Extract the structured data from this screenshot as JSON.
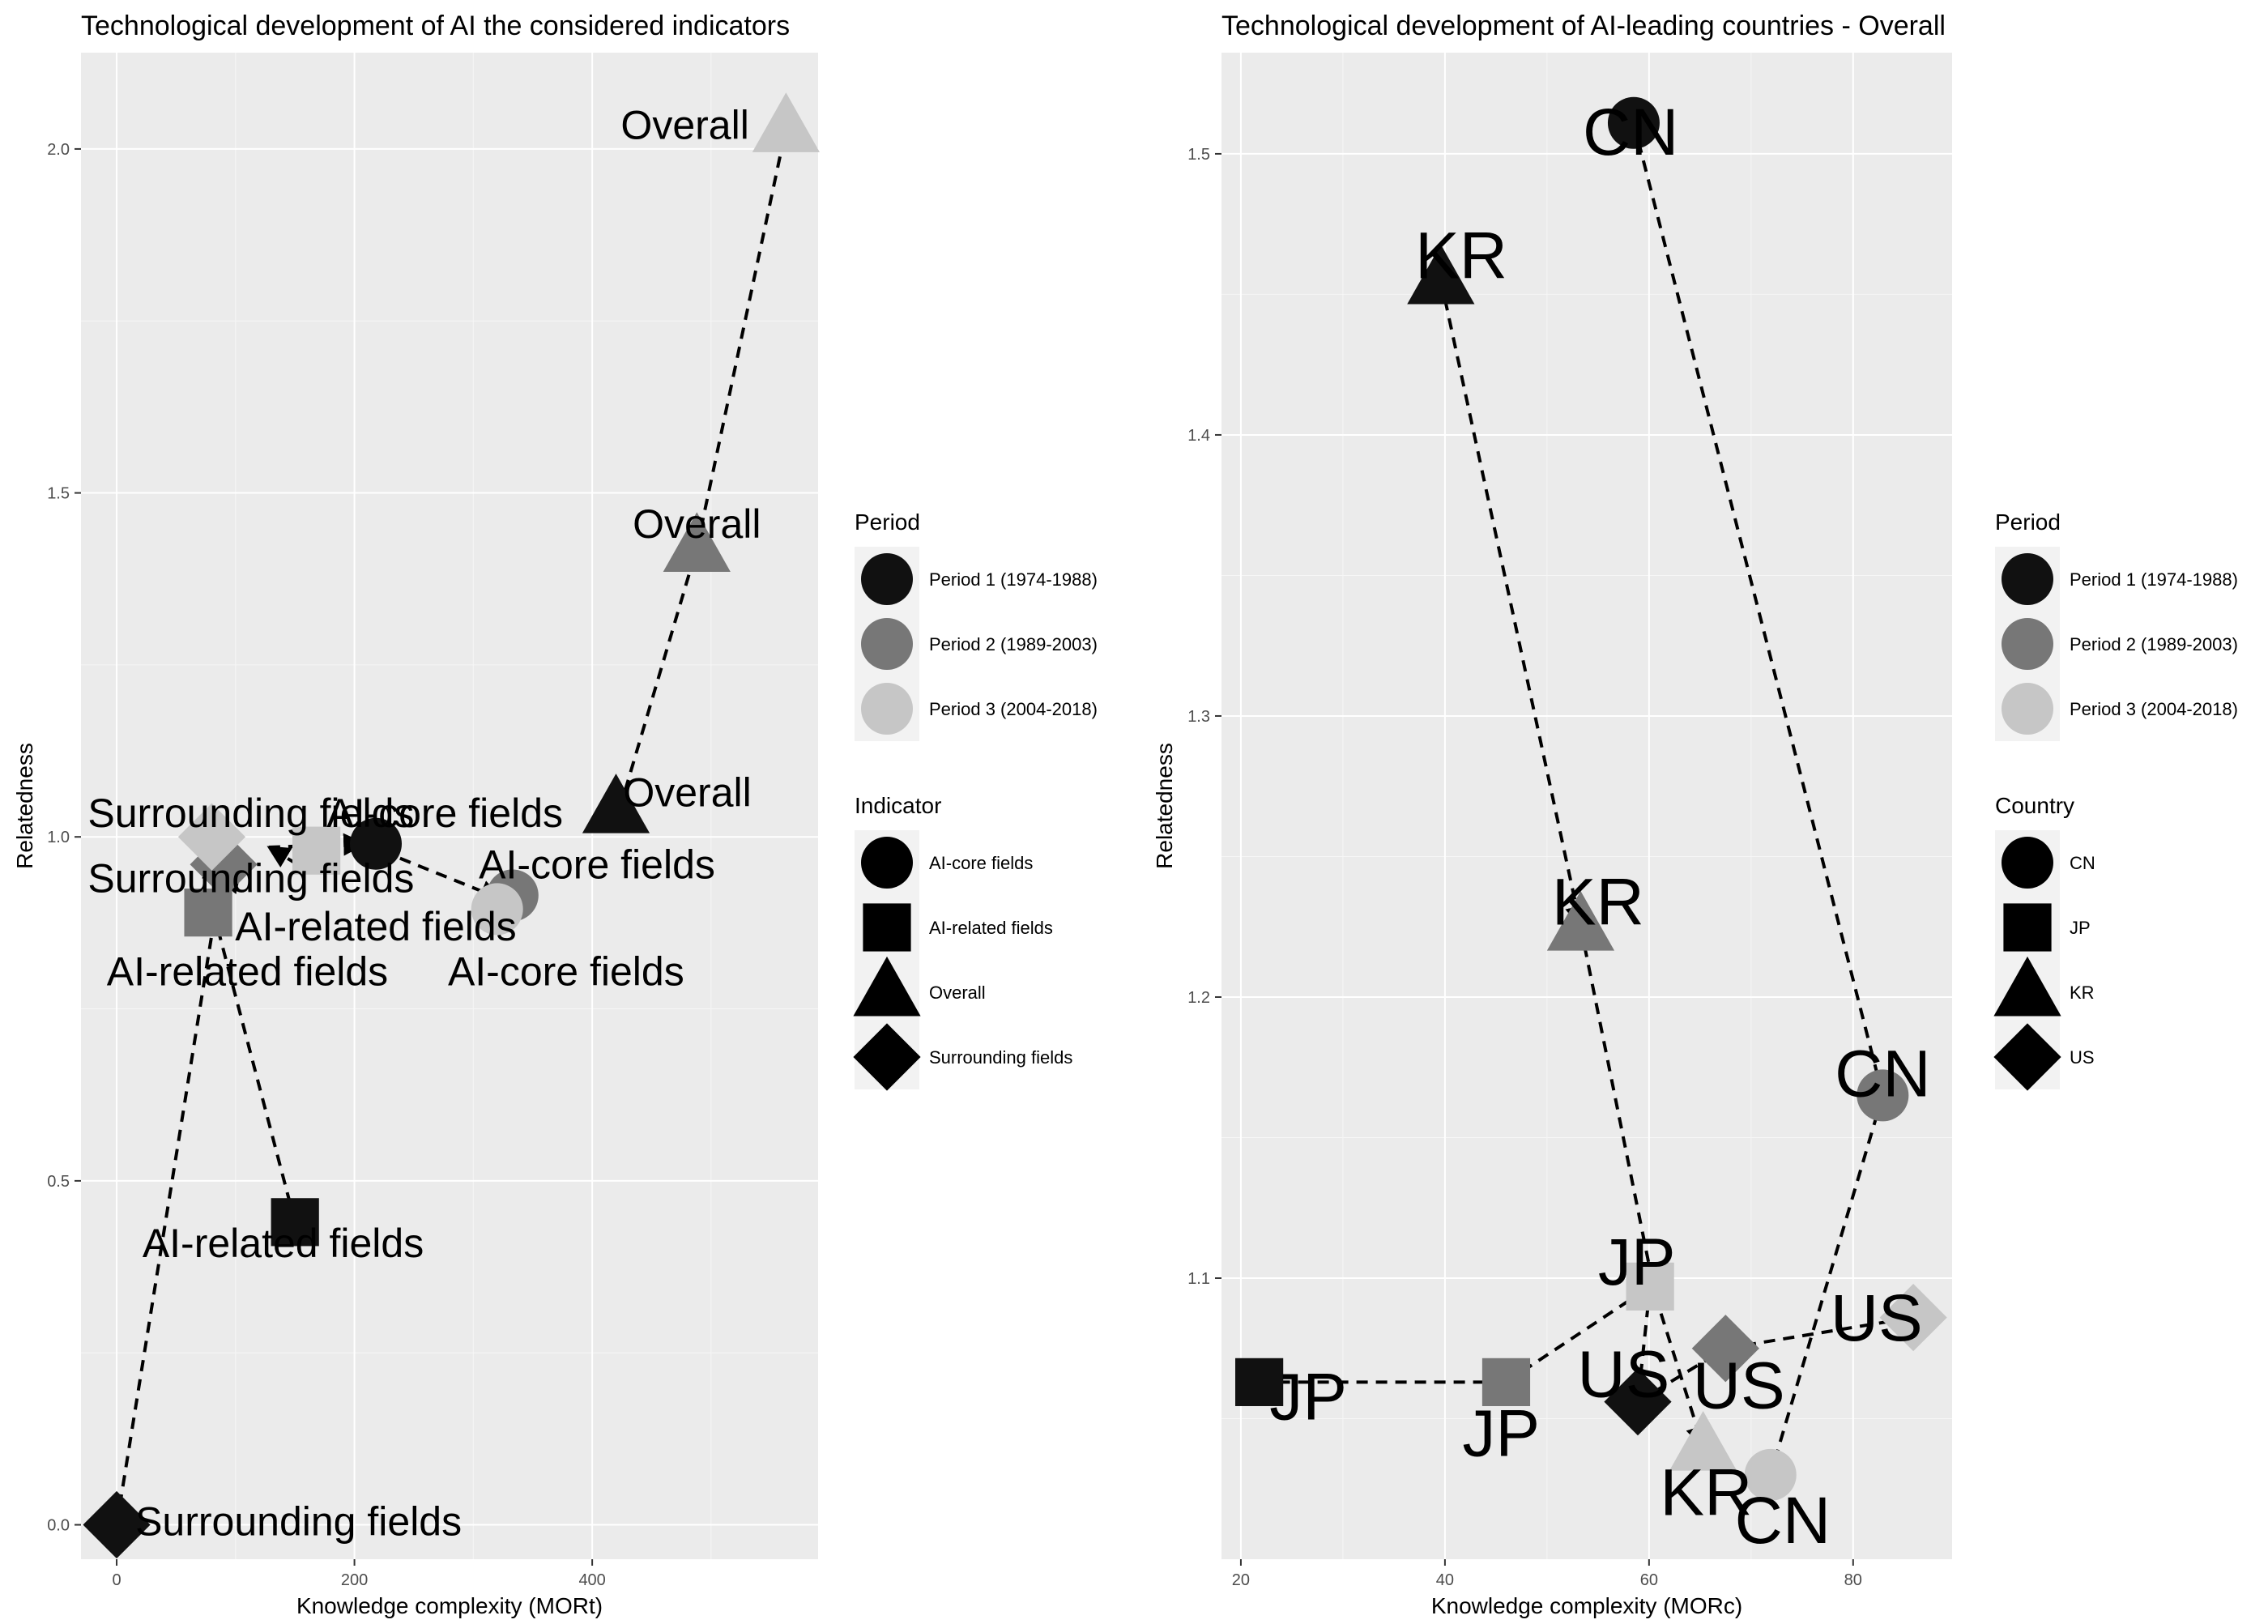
{
  "chart_data": [
    {
      "type": "scatter",
      "title": "Technological development of AI the considered indicators",
      "xlabel": "Knowledge complexity (MORt)",
      "ylabel": "Relatedness",
      "xlim": [
        -30,
        590
      ],
      "ylim": [
        -0.05,
        2.14
      ],
      "x_ticks": [
        0,
        200,
        400
      ],
      "y_ticks": [
        0.0,
        0.5,
        1.0,
        1.5,
        2.0
      ],
      "y_tick_labels": [
        "0.0",
        "0.5",
        "1.0",
        "1.5",
        "2.0"
      ],
      "grid": true,
      "period_colors": {
        "Period 1 (1974-1988)": "#111111",
        "Period 2 (1989-2003)": "#777777",
        "Period 3 (2004-2018)": "#c6c6c6"
      },
      "series": [
        {
          "indicator": "Surrounding fields",
          "shape": "diamond",
          "points": [
            {
              "period": "Period 1 (1974-1988)",
              "x": 0,
              "y": 0.0
            },
            {
              "period": "Period 2 (1989-2003)",
              "x": 90,
              "y": 0.96
            },
            {
              "period": "Period 3 (2004-2018)",
              "x": 80,
              "y": 1.0
            }
          ]
        },
        {
          "indicator": "AI-related fields",
          "shape": "square",
          "points": [
            {
              "period": "Period 1 (1974-1988)",
              "x": 150,
              "y": 0.44
            },
            {
              "period": "Period 2 (1989-2003)",
              "x": 77,
              "y": 0.89
            },
            {
              "period": "Period 3 (2004-2018)",
              "x": 168,
              "y": 0.98
            }
          ]
        },
        {
          "indicator": "AI-core fields",
          "shape": "circle",
          "points": [
            {
              "period": "Period 1 (1974-1988)",
              "x": 218,
              "y": 0.99
            },
            {
              "period": "Period 2 (1989-2003)",
              "x": 333,
              "y": 0.915
            },
            {
              "period": "Period 3 (2004-2018)",
              "x": 320,
              "y": 0.895
            }
          ]
        },
        {
          "indicator": "Overall",
          "shape": "triangle",
          "points": [
            {
              "period": "Period 1 (1974-1988)",
              "x": 420,
              "y": 1.04
            },
            {
              "period": "Period 2 (1989-2003)",
              "x": 488,
              "y": 1.42
            },
            {
              "period": "Period 3 (2004-2018)",
              "x": 563,
              "y": 2.03
            }
          ]
        }
      ],
      "labels": [
        {
          "text": "Surrounding fields",
          "x": 153,
          "y": 0.0
        },
        {
          "text": "Surrounding fields",
          "x": 113,
          "y": 1.03
        },
        {
          "text": "Surrounding fields",
          "x": 113,
          "y": 0.935
        },
        {
          "text": "AI-related fields",
          "x": 140,
          "y": 0.405
        },
        {
          "text": "AI-related fields",
          "x": 110,
          "y": 0.8
        },
        {
          "text": "AI-related fields",
          "x": 218,
          "y": 0.865
        },
        {
          "text": "AI-core fields",
          "x": 276,
          "y": 1.03
        },
        {
          "text": "AI-core fields",
          "x": 404,
          "y": 0.955
        },
        {
          "text": "AI-core fields",
          "x": 378,
          "y": 0.8
        },
        {
          "text": "Overall",
          "x": 480,
          "y": 1.06
        },
        {
          "text": "Overall",
          "x": 488,
          "y": 1.45
        },
        {
          "text": "Overall",
          "x": 478,
          "y": 2.03
        }
      ],
      "arrows": [
        {
          "from": [
            0,
            0.0
          ],
          "to": [
            83,
            0.89
          ]
        },
        {
          "from": [
            83,
            0.89
          ],
          "to": [
            80,
            0.97
          ]
        },
        {
          "from": [
            150,
            0.44
          ],
          "to": [
            80,
            0.9
          ]
        },
        {
          "from": [
            80,
            0.9
          ],
          "to": [
            104,
            0.95
          ]
        },
        {
          "from": [
            218,
            0.99
          ],
          "to": [
            152,
            0.96
          ]
        },
        {
          "from": [
            152,
            0.96
          ],
          "to": [
            128,
            0.985
          ]
        },
        {
          "from": [
            128,
            0.985
          ],
          "to": [
            208,
            0.99
          ]
        },
        {
          "from": [
            208,
            0.99
          ],
          "to": [
            323,
            0.91
          ]
        },
        {
          "from": [
            423,
            1.04
          ],
          "to": [
            488,
            1.42
          ]
        },
        {
          "from": [
            488,
            1.42
          ],
          "to": [
            563,
            2.03
          ]
        }
      ],
      "legend": {
        "placement": "right",
        "period_title": "Period",
        "period_entries": [
          "Period 1 (1974-1988)",
          "Period 2 (1989-2003)",
          "Period 3 (2004-2018)"
        ],
        "shape_title": "Indicator",
        "shape_entries": [
          {
            "label": "AI-core fields",
            "shape": "circle"
          },
          {
            "label": "AI-related fields",
            "shape": "square"
          },
          {
            "label": "Overall",
            "shape": "triangle"
          },
          {
            "label": "Surrounding fields",
            "shape": "diamond"
          }
        ]
      }
    },
    {
      "type": "scatter",
      "title": "Technological development of AI-leading countries - Overall",
      "xlabel": "Knowledge complexity (MORc)",
      "ylabel": "Relatedness",
      "xlim": [
        18.1,
        89.7
      ],
      "ylim": [
        1.0,
        1.536
      ],
      "x_ticks": [
        20,
        40,
        60,
        80
      ],
      "y_ticks": [
        1.1,
        1.2,
        1.3,
        1.4,
        1.5
      ],
      "y_tick_labels": [
        "1.1",
        "1.2",
        "1.3",
        "1.4",
        "1.5"
      ],
      "grid": true,
      "period_colors": {
        "Period 1 (1974-1988)": "#111111",
        "Period 2 (1989-2003)": "#777777",
        "Period 3 (2004-2018)": "#c6c6c6"
      },
      "series": [
        {
          "country": "CN",
          "shape": "circle",
          "points": [
            {
              "period": "Period 1 (1974-1988)",
              "x": 58.5,
              "y": 1.511
            },
            {
              "period": "Period 2 (1989-2003)",
              "x": 82.9,
              "y": 1.165
            },
            {
              "period": "Period 3 (2004-2018)",
              "x": 71.9,
              "y": 1.03
            }
          ]
        },
        {
          "country": "JP",
          "shape": "square",
          "points": [
            {
              "period": "Period 1 (1974-1988)",
              "x": 21.8,
              "y": 1.063
            },
            {
              "period": "Period 2 (1989-2003)",
              "x": 46.0,
              "y": 1.063
            },
            {
              "period": "Period 3 (2004-2018)",
              "x": 60.1,
              "y": 1.097
            }
          ]
        },
        {
          "country": "KR",
          "shape": "triangle",
          "points": [
            {
              "period": "Period 1 (1974-1988)",
              "x": 39.6,
              "y": 1.455
            },
            {
              "period": "Period 2 (1989-2003)",
              "x": 53.3,
              "y": 1.225
            },
            {
              "period": "Period 3 (2004-2018)",
              "x": 65.3,
              "y": 1.04
            }
          ]
        },
        {
          "country": "US",
          "shape": "diamond",
          "points": [
            {
              "period": "Period 1 (1974-1988)",
              "x": 58.9,
              "y": 1.056
            },
            {
              "period": "Period 2 (1989-2003)",
              "x": 67.5,
              "y": 1.075
            },
            {
              "period": "Period 3 (2004-2018)",
              "x": 85.9,
              "y": 1.086
            }
          ]
        }
      ],
      "labels": [
        {
          "text": "CN",
          "x": 58.2,
          "y": 1.506
        },
        {
          "text": "CN",
          "x": 82.9,
          "y": 1.171
        },
        {
          "text": "CN",
          "x": 73.1,
          "y": 1.012
        },
        {
          "text": "KR",
          "x": 41.6,
          "y": 1.462
        },
        {
          "text": "KR",
          "x": 55.0,
          "y": 1.232
        },
        {
          "text": "KR",
          "x": 65.6,
          "y": 1.022
        },
        {
          "text": "JP",
          "x": 26.6,
          "y": 1.056
        },
        {
          "text": "JP",
          "x": 45.5,
          "y": 1.043
        },
        {
          "text": "JP",
          "x": 58.8,
          "y": 1.104
        },
        {
          "text": "US",
          "x": 57.5,
          "y": 1.064
        },
        {
          "text": "US",
          "x": 68.8,
          "y": 1.06
        },
        {
          "text": "US",
          "x": 82.3,
          "y": 1.084
        }
      ],
      "arrows": [
        {
          "from": [
            58.5,
            1.511
          ],
          "to": [
            82.9,
            1.165
          ]
        },
        {
          "from": [
            82.9,
            1.165
          ],
          "to": [
            71.9,
            1.03
          ]
        },
        {
          "from": [
            39.6,
            1.455
          ],
          "to": [
            53.3,
            1.225
          ]
        },
        {
          "from": [
            53.3,
            1.225
          ],
          "to": [
            60.6,
            1.094
          ]
        },
        {
          "from": [
            60.6,
            1.094
          ],
          "to": [
            65.3,
            1.04
          ]
        },
        {
          "from": [
            21.8,
            1.063
          ],
          "to": [
            46.0,
            1.063
          ]
        },
        {
          "from": [
            46.0,
            1.063
          ],
          "to": [
            60.1,
            1.097
          ]
        },
        {
          "from": [
            60.1,
            1.097
          ],
          "to": [
            58.9,
            1.056
          ]
        },
        {
          "from": [
            58.9,
            1.056
          ],
          "to": [
            67.5,
            1.075
          ]
        },
        {
          "from": [
            67.5,
            1.075
          ],
          "to": [
            85.9,
            1.086
          ]
        }
      ],
      "legend": {
        "placement": "right",
        "period_title": "Period",
        "period_entries": [
          "Period 1 (1974-1988)",
          "Period 2 (1989-2003)",
          "Period 3 (2004-2018)"
        ],
        "shape_title": "Country",
        "shape_entries": [
          {
            "label": "CN",
            "shape": "circle"
          },
          {
            "label": "JP",
            "shape": "square"
          },
          {
            "label": "KR",
            "shape": "triangle"
          },
          {
            "label": "US",
            "shape": "diamond"
          }
        ]
      }
    }
  ]
}
